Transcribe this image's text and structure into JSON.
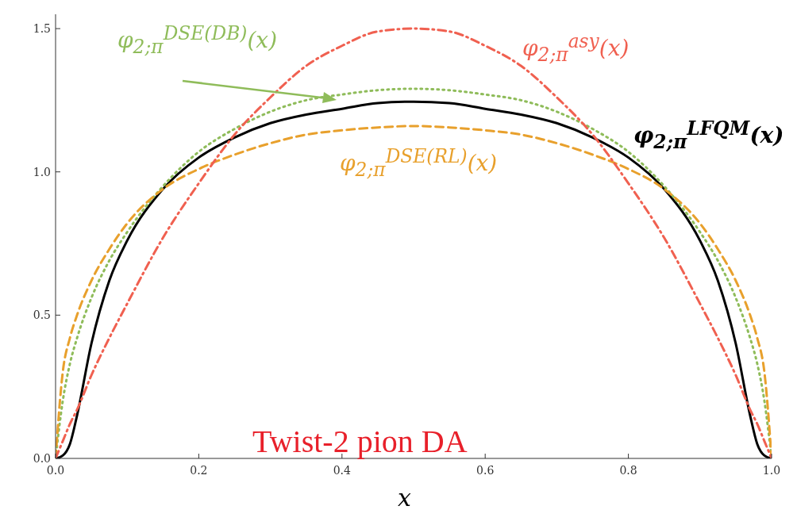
{
  "chart_data": {
    "type": "line",
    "xlabel": "x",
    "annotations": [
      "Twist-2 pion DA"
    ],
    "x": [
      0,
      0.01,
      0.02,
      0.03,
      0.05,
      0.075,
      0.1,
      0.15,
      0.2,
      0.25,
      0.3,
      0.35,
      0.4,
      0.45,
      0.5,
      0.55,
      0.6,
      0.65,
      0.7,
      0.75,
      0.8,
      0.85,
      0.9,
      0.925,
      0.95,
      0.97,
      0.98,
      0.99,
      1
    ],
    "series": [
      {
        "name": "φ$_{2;π}$$^{LFQM}$(x)",
        "color": "#000000",
        "line_style": "solid",
        "values": [
          0,
          0.01,
          0.05,
          0.15,
          0.4,
          0.62,
          0.76,
          0.94,
          1.05,
          1.12,
          1.17,
          1.2,
          1.22,
          1.24,
          1.245,
          1.24,
          1.22,
          1.2,
          1.17,
          1.12,
          1.05,
          0.94,
          0.76,
          0.62,
          0.4,
          0.15,
          0.05,
          0.01,
          0
        ]
      },
      {
        "name": "φ$_{2;π}$$^{DSE(DB)}$(x)",
        "color": "#8fbc5a",
        "line_style": "dotted",
        "values": [
          0,
          0.2,
          0.33,
          0.42,
          0.56,
          0.69,
          0.79,
          0.95,
          1.07,
          1.15,
          1.21,
          1.25,
          1.27,
          1.285,
          1.29,
          1.285,
          1.27,
          1.25,
          1.21,
          1.15,
          1.07,
          0.95,
          0.79,
          0.69,
          0.56,
          0.42,
          0.33,
          0.2,
          0
        ]
      },
      {
        "name": "φ$_{2;π}$$^{DSE(RL)}$(x)",
        "color": "#e8a02c",
        "line_style": "dashed",
        "values": [
          0,
          0.3,
          0.42,
          0.5,
          0.62,
          0.73,
          0.82,
          0.94,
          1.01,
          1.06,
          1.1,
          1.13,
          1.145,
          1.155,
          1.16,
          1.155,
          1.145,
          1.13,
          1.1,
          1.06,
          1.01,
          0.94,
          0.82,
          0.73,
          0.62,
          0.5,
          0.42,
          0.3,
          0
        ]
      },
      {
        "name": "φ$_{2;π}$$^{asy}$(x)",
        "color": "#f06050",
        "line_style": "dashdot",
        "values": [
          0,
          0.06,
          0.12,
          0.17,
          0.29,
          0.42,
          0.54,
          0.77,
          0.96,
          1.13,
          1.26,
          1.37,
          1.44,
          1.49,
          1.5,
          1.49,
          1.44,
          1.37,
          1.26,
          1.13,
          0.96,
          0.77,
          0.54,
          0.42,
          0.29,
          0.17,
          0.12,
          0.06,
          0
        ]
      }
    ],
    "xlim": [
      0,
      1
    ],
    "xticks": [
      {
        "value": 0,
        "label": "0.0"
      },
      0.2,
      0.4,
      0.6,
      0.8,
      {
        "value": 1,
        "label": "1.0"
      }
    ],
    "ylim": [
      0,
      1.55
    ],
    "yticks": [
      {
        "value": 0,
        "label": "0.0"
      },
      0.5,
      {
        "value": 1,
        "label": "1.0"
      },
      1.5
    ],
    "grid": false,
    "legend": false
  }
}
